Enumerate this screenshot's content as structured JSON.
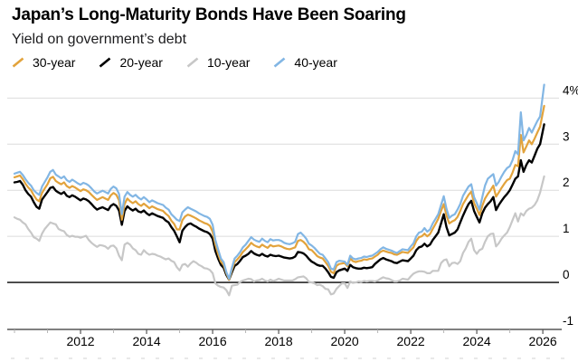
{
  "header": {
    "title": "Japan’s Long-Maturity Bonds Have Been Soaring",
    "subtitle": "Yield on government’s debt"
  },
  "legend": {
    "items": [
      {
        "label": "30-year",
        "color": "#E2A33C"
      },
      {
        "label": "20-year",
        "color": "#000000"
      },
      {
        "label": "10-year",
        "color": "#C7C7C7"
      },
      {
        "label": "40-year",
        "color": "#82B6E4"
      }
    ]
  },
  "chart_data": {
    "type": "line",
    "title": "Japan’s Long-Maturity Bonds Have Been Soaring",
    "subtitle": "Yield on government’s debt",
    "unit": "%",
    "x_start": 2010.0,
    "x_step": 0.0833333,
    "x_end": 2026.04,
    "xlim": [
      2009.78,
      2026.49
    ],
    "ylim": [
      -1.02,
      4.36
    ],
    "grid_color": "#DBDBDB",
    "zero_line_color": "#000000",
    "yticks": [
      {
        "value": 4,
        "label": "4%"
      },
      {
        "value": 3,
        "label": "3"
      },
      {
        "value": 2,
        "label": "2"
      },
      {
        "value": 1,
        "label": "1"
      },
      {
        "value": 0,
        "label": "0"
      },
      {
        "value": -1,
        "label": "-1"
      }
    ],
    "xticks_major": [
      {
        "value": 2012,
        "label": "2012"
      },
      {
        "value": 2014,
        "label": "2014"
      },
      {
        "value": 2016,
        "label": "2016"
      },
      {
        "value": 2018,
        "label": "2018"
      },
      {
        "value": 2020,
        "label": "2020"
      },
      {
        "value": 2022,
        "label": "2022"
      },
      {
        "value": 2024,
        "label": "2024"
      },
      {
        "value": 2026,
        "label": "2026"
      }
    ],
    "xticks_minor": [
      2010,
      2011,
      2013,
      2015,
      2017,
      2019,
      2021,
      2023,
      2025
    ],
    "series": [
      {
        "name": "10-year",
        "color": "#C7C7C7",
        "width": 2.2,
        "values": [
          1.41,
          1.38,
          1.36,
          1.3,
          1.26,
          1.16,
          1.08,
          0.98,
          0.95,
          0.9,
          1.06,
          1.16,
          1.23,
          1.3,
          1.28,
          1.26,
          1.16,
          1.13,
          1.11,
          1.03,
          0.99,
          1.01,
          0.99,
          0.99,
          0.97,
          0.99,
          1.01,
          0.92,
          0.86,
          0.81,
          0.77,
          0.81,
          0.8,
          0.78,
          0.73,
          0.79,
          0.8,
          0.74,
          0.58,
          0.48,
          0.82,
          0.86,
          0.82,
          0.74,
          0.7,
          0.62,
          0.6,
          0.7,
          0.64,
          0.6,
          0.62,
          0.61,
          0.58,
          0.56,
          0.53,
          0.5,
          0.52,
          0.47,
          0.44,
          0.33,
          0.26,
          0.38,
          0.4,
          0.34,
          0.41,
          0.46,
          0.43,
          0.38,
          0.35,
          0.31,
          0.3,
          0.27,
          0.2,
          -0.02,
          -0.07,
          -0.1,
          -0.11,
          -0.17,
          -0.28,
          -0.07,
          -0.06,
          -0.05,
          0.01,
          0.04,
          0.06,
          0.08,
          0.07,
          0.02,
          0.04,
          0.05,
          0.08,
          0.04,
          0.02,
          0.06,
          0.03,
          0.05,
          0.08,
          0.06,
          0.04,
          0.04,
          0.04,
          0.04,
          0.07,
          0.11,
          0.12,
          0.13,
          0.09,
          0.01,
          0.0,
          -0.02,
          -0.06,
          -0.05,
          -0.08,
          -0.14,
          -0.15,
          -0.26,
          -0.24,
          -0.14,
          -0.08,
          -0.02,
          -0.02,
          -0.12,
          0.02,
          -0.01,
          0.0,
          0.02,
          0.01,
          0.03,
          0.02,
          0.03,
          0.03,
          0.02,
          0.04,
          0.08,
          0.11,
          0.09,
          0.08,
          0.05,
          0.02,
          0.02,
          0.04,
          0.08,
          0.07,
          0.06,
          0.13,
          0.19,
          0.22,
          0.24,
          0.24,
          0.23,
          0.2,
          0.2,
          0.25,
          0.25,
          0.25,
          0.42,
          0.48,
          0.5,
          0.35,
          0.42,
          0.43,
          0.4,
          0.46,
          0.64,
          0.74,
          0.88,
          0.95,
          0.7,
          0.62,
          0.7,
          0.73,
          0.88,
          1.0,
          1.05,
          1.06,
          0.78,
          0.85,
          0.95,
          1.02,
          1.08,
          1.2,
          1.35,
          1.5,
          1.32,
          1.5,
          1.45,
          1.55,
          1.6,
          1.62,
          1.68,
          1.78,
          1.95,
          2.3
        ]
      },
      {
        "name": "20-year",
        "color": "#000000",
        "width": 2.4,
        "values": [
          2.17,
          2.18,
          2.2,
          2.12,
          2.0,
          1.92,
          1.86,
          1.74,
          1.64,
          1.6,
          1.8,
          1.88,
          1.96,
          2.05,
          2.07,
          1.99,
          1.95,
          1.92,
          1.96,
          1.88,
          1.85,
          1.89,
          1.86,
          1.82,
          1.78,
          1.82,
          1.8,
          1.76,
          1.7,
          1.63,
          1.58,
          1.61,
          1.63,
          1.6,
          1.57,
          1.66,
          1.7,
          1.66,
          1.56,
          1.25,
          1.55,
          1.65,
          1.6,
          1.56,
          1.6,
          1.54,
          1.52,
          1.56,
          1.5,
          1.46,
          1.5,
          1.47,
          1.44,
          1.42,
          1.4,
          1.34,
          1.3,
          1.2,
          1.12,
          1.0,
          0.87,
          1.12,
          1.2,
          1.26,
          1.28,
          1.24,
          1.21,
          1.17,
          1.14,
          1.11,
          1.09,
          1.05,
          0.95,
          0.68,
          0.52,
          0.38,
          0.32,
          0.16,
          0.06,
          0.22,
          0.36,
          0.4,
          0.47,
          0.55,
          0.58,
          0.62,
          0.68,
          0.63,
          0.6,
          0.58,
          0.62,
          0.58,
          0.56,
          0.6,
          0.58,
          0.57,
          0.58,
          0.56,
          0.54,
          0.53,
          0.52,
          0.53,
          0.56,
          0.66,
          0.65,
          0.63,
          0.58,
          0.51,
          0.45,
          0.42,
          0.38,
          0.36,
          0.36,
          0.3,
          0.22,
          0.12,
          0.1,
          0.22,
          0.26,
          0.28,
          0.3,
          0.25,
          0.38,
          0.33,
          0.31,
          0.3,
          0.3,
          0.32,
          0.31,
          0.32,
          0.33,
          0.4,
          0.45,
          0.5,
          0.53,
          0.5,
          0.48,
          0.46,
          0.43,
          0.42,
          0.45,
          0.48,
          0.47,
          0.46,
          0.52,
          0.58,
          0.7,
          0.76,
          0.78,
          0.84,
          0.78,
          0.82,
          0.92,
          1.0,
          1.08,
          1.28,
          1.48,
          1.2,
          1.02,
          1.05,
          1.08,
          1.15,
          1.3,
          1.45,
          1.58,
          1.7,
          1.77,
          1.55,
          1.42,
          1.3,
          1.5,
          1.62,
          1.7,
          1.76,
          1.85,
          1.57,
          1.68,
          1.77,
          1.85,
          1.92,
          2.0,
          2.12,
          2.25,
          2.3,
          2.65,
          2.4,
          2.55,
          2.65,
          2.6,
          2.75,
          2.9,
          3.0,
          3.43
        ]
      },
      {
        "name": "30-year",
        "color": "#E2A33C",
        "width": 2.2,
        "values": [
          2.28,
          2.3,
          2.32,
          2.24,
          2.14,
          2.06,
          2.0,
          1.89,
          1.8,
          1.76,
          1.94,
          2.04,
          2.13,
          2.26,
          2.29,
          2.2,
          2.16,
          2.13,
          2.17,
          2.09,
          2.05,
          2.09,
          2.06,
          2.02,
          1.98,
          2.02,
          2.0,
          1.96,
          1.9,
          1.84,
          1.79,
          1.82,
          1.85,
          1.82,
          1.79,
          1.89,
          1.94,
          1.9,
          1.78,
          1.36,
          1.7,
          1.82,
          1.76,
          1.72,
          1.76,
          1.7,
          1.66,
          1.71,
          1.66,
          1.61,
          1.65,
          1.62,
          1.59,
          1.57,
          1.55,
          1.49,
          1.44,
          1.34,
          1.27,
          1.15,
          1.15,
          1.35,
          1.43,
          1.47,
          1.45,
          1.42,
          1.39,
          1.35,
          1.32,
          1.29,
          1.27,
          1.23,
          1.1,
          0.82,
          0.62,
          0.45,
          0.38,
          0.2,
          0.06,
          0.27,
          0.44,
          0.5,
          0.57,
          0.66,
          0.72,
          0.78,
          0.86,
          0.81,
          0.78,
          0.76,
          0.82,
          0.78,
          0.75,
          0.81,
          0.78,
          0.79,
          0.8,
          0.78,
          0.75,
          0.73,
          0.72,
          0.74,
          0.76,
          0.9,
          0.92,
          0.88,
          0.82,
          0.72,
          0.7,
          0.64,
          0.57,
          0.54,
          0.52,
          0.44,
          0.36,
          0.23,
          0.2,
          0.36,
          0.4,
          0.41,
          0.42,
          0.35,
          0.52,
          0.46,
          0.44,
          0.46,
          0.47,
          0.5,
          0.49,
          0.51,
          0.52,
          0.56,
          0.6,
          0.66,
          0.69,
          0.67,
          0.65,
          0.64,
          0.61,
          0.6,
          0.63,
          0.66,
          0.65,
          0.64,
          0.7,
          0.76,
          0.9,
          0.98,
          1.0,
          1.06,
          1.0,
          1.05,
          1.16,
          1.27,
          1.38,
          1.55,
          1.7,
          1.45,
          1.28,
          1.32,
          1.35,
          1.42,
          1.55,
          1.7,
          1.8,
          1.9,
          1.97,
          1.72,
          1.6,
          1.46,
          1.66,
          1.82,
          1.92,
          2.0,
          2.1,
          1.86,
          1.95,
          2.05,
          2.14,
          2.22,
          2.25,
          2.38,
          2.55,
          2.52,
          3.2,
          2.82,
          2.95,
          3.08,
          3.0,
          3.12,
          3.25,
          3.38,
          3.83
        ]
      },
      {
        "name": "40-year",
        "color": "#82B6E4",
        "width": 2.2,
        "values": [
          2.36,
          2.38,
          2.4,
          2.33,
          2.24,
          2.16,
          2.1,
          2.0,
          1.94,
          1.9,
          2.08,
          2.18,
          2.28,
          2.4,
          2.44,
          2.34,
          2.3,
          2.26,
          2.3,
          2.22,
          2.18,
          2.23,
          2.19,
          2.15,
          2.12,
          2.16,
          2.14,
          2.1,
          2.04,
          1.97,
          1.93,
          1.96,
          1.99,
          1.96,
          1.93,
          2.03,
          2.08,
          2.04,
          1.92,
          1.48,
          1.86,
          1.96,
          1.9,
          1.86,
          1.9,
          1.84,
          1.8,
          1.85,
          1.8,
          1.74,
          1.78,
          1.75,
          1.72,
          1.7,
          1.68,
          1.62,
          1.58,
          1.48,
          1.42,
          1.36,
          1.33,
          1.52,
          1.58,
          1.63,
          1.6,
          1.57,
          1.54,
          1.5,
          1.47,
          1.44,
          1.42,
          1.38,
          1.25,
          0.92,
          0.72,
          0.52,
          0.44,
          0.22,
          0.08,
          0.32,
          0.52,
          0.58,
          0.66,
          0.76,
          0.82,
          0.9,
          0.98,
          0.93,
          0.9,
          0.88,
          0.95,
          0.9,
          0.87,
          0.94,
          0.91,
          0.92,
          0.92,
          0.9,
          0.86,
          0.84,
          0.83,
          0.85,
          0.88,
          1.05,
          1.08,
          1.02,
          0.95,
          0.84,
          0.8,
          0.75,
          0.68,
          0.62,
          0.6,
          0.52,
          0.44,
          0.3,
          0.28,
          0.44,
          0.47,
          0.46,
          0.45,
          0.38,
          0.58,
          0.52,
          0.5,
          0.52,
          0.53,
          0.56,
          0.55,
          0.57,
          0.58,
          0.62,
          0.66,
          0.72,
          0.76,
          0.73,
          0.71,
          0.69,
          0.66,
          0.64,
          0.68,
          0.72,
          0.71,
          0.7,
          0.78,
          0.85,
          1.0,
          1.08,
          1.1,
          1.18,
          1.1,
          1.15,
          1.28,
          1.38,
          1.48,
          1.68,
          1.87,
          1.6,
          1.4,
          1.45,
          1.48,
          1.58,
          1.7,
          1.88,
          1.98,
          2.08,
          2.13,
          1.85,
          1.72,
          1.58,
          1.85,
          2.1,
          2.25,
          2.3,
          2.35,
          2.1,
          2.18,
          2.3,
          2.4,
          2.48,
          2.52,
          2.65,
          2.85,
          2.78,
          3.69,
          3.08,
          3.2,
          3.35,
          3.25,
          3.38,
          3.5,
          3.6,
          4.29
        ]
      }
    ]
  }
}
